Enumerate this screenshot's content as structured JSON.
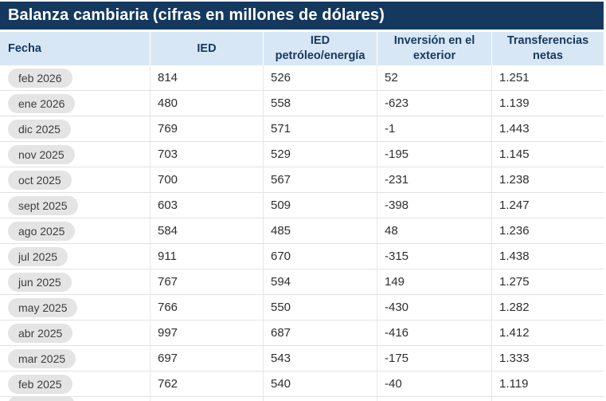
{
  "title": "Balanza cambiaria (cifras en millones de dólares)",
  "chart_data": {
    "type": "table",
    "columns": [
      "Fecha",
      "IED",
      "IED petróleo/energía",
      "Inversión en el exterior",
      "Transferencias netas"
    ],
    "rows": [
      [
        "feb 2026",
        "814",
        "526",
        "52",
        "1.251"
      ],
      [
        "ene 2026",
        "480",
        "558",
        "-623",
        "1.139"
      ],
      [
        "dic 2025",
        "769",
        "571",
        "-1",
        "1.443"
      ],
      [
        "nov 2025",
        "703",
        "529",
        "-195",
        "1.145"
      ],
      [
        "oct 2025",
        "700",
        "567",
        "-231",
        "1.238"
      ],
      [
        "sept 2025",
        "603",
        "509",
        "-398",
        "1.247"
      ],
      [
        "ago 2025",
        "584",
        "485",
        "48",
        "1.236"
      ],
      [
        "jul 2025",
        "911",
        "670",
        "-315",
        "1.438"
      ],
      [
        "jun 2025",
        "767",
        "594",
        "149",
        "1.275"
      ],
      [
        "may 2025",
        "766",
        "550",
        "-430",
        "1.282"
      ],
      [
        "abr 2025",
        "997",
        "687",
        "-416",
        "1.412"
      ],
      [
        "mar 2025",
        "697",
        "543",
        "-175",
        "1.333"
      ],
      [
        "feb 2025",
        "762",
        "540",
        "-40",
        "1.119"
      ]
    ]
  },
  "colors": {
    "title_bar_bg": "#15395E",
    "title_text": "#FFFFFF",
    "header_bg": "#D8E7F5",
    "header_text": "#15395E",
    "row_border": "#E2E2E2",
    "pill_bg": "#E4E4E4",
    "body_text": "#2E2E2E"
  }
}
